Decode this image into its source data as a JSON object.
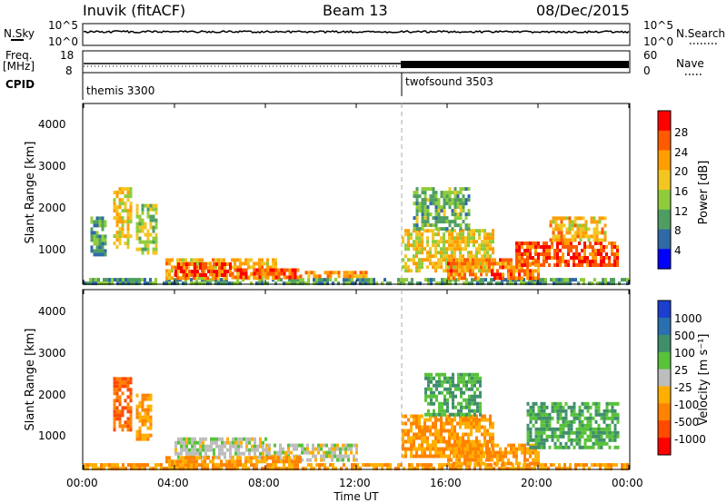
{
  "header": {
    "station": "Inuvik (fitACF)",
    "beam": "Beam 13",
    "date": "08/Dec/2015"
  },
  "noise_panel": {
    "left_label": "N.Sky",
    "right_label": "N.Search",
    "left_ticks": [
      "10^5",
      "10^0"
    ],
    "right_ticks": [
      "10^5",
      "10^0"
    ]
  },
  "freq_panel": {
    "left_label_1": "Freq.",
    "left_label_2": "[MHz]",
    "right_label": "Nave",
    "left_ticks": [
      "18",
      "8"
    ],
    "right_ticks": [
      "60",
      "0"
    ]
  },
  "cpid_panel": {
    "label": "CPID",
    "modes": [
      {
        "name": "themis 3300",
        "start_hour": 0
      },
      {
        "name": "twofsound 3503",
        "start_hour": 14
      }
    ]
  },
  "power_panel": {
    "ylabel": "Slant Range [km]",
    "yticks": [
      "4000",
      "3000",
      "2000",
      "1000"
    ],
    "colorbar_label": "Power [dB]",
    "colorbar_ticks": [
      "28",
      "24",
      "20",
      "16",
      "12",
      "8",
      "4"
    ],
    "colors": [
      "#ff0000",
      "#ff5a00",
      "#ff9d00",
      "#f3c521",
      "#8fcc3a",
      "#4f9e61",
      "#2f6aa6",
      "#0000ff"
    ]
  },
  "velocity_panel": {
    "ylabel": "Slant Range [km]",
    "yticks": [
      "4000",
      "3000",
      "2000",
      "1000"
    ],
    "colorbar_label": "Velocity [m s⁻¹]",
    "colorbar_ticks": [
      "1000",
      "500",
      "100",
      "25",
      "-25",
      "-100",
      "-500",
      "-1000"
    ],
    "colors": [
      "#1c3fd0",
      "#2a6fb0",
      "#3f8f6a",
      "#58c23a",
      "#bdbdbd",
      "#ffaf00",
      "#ff8200",
      "#ff4a00",
      "#ff0000"
    ]
  },
  "time_axis": {
    "ticks": [
      "00:00",
      "04:00",
      "08:00",
      "12:00",
      "16:00",
      "20:00",
      "00:00"
    ],
    "label": "Time UT"
  },
  "chart_data": {
    "type": "heatmap",
    "title": "Inuvik (fitACF)   Beam 13   08/Dec/2015",
    "xlabel": "Time UT",
    "ylabel": "Slant Range [km]",
    "xlim_hours": [
      0,
      24
    ],
    "ylim_km": [
      180,
      4500
    ],
    "grid": false,
    "mode_change_hour": 14,
    "power_regions": [
      {
        "t0": 0.0,
        "t1": 24.0,
        "r0": 180,
        "r1": 330,
        "db": 10
      },
      {
        "t0": 1.3,
        "t1": 2.1,
        "r0": 1100,
        "r1": 2500,
        "db": 18
      },
      {
        "t0": 2.3,
        "t1": 3.2,
        "r0": 900,
        "r1": 2100,
        "db": 14
      },
      {
        "t0": 0.3,
        "t1": 1.0,
        "r0": 900,
        "r1": 1800,
        "db": 10
      },
      {
        "t0": 3.6,
        "t1": 8.5,
        "r0": 300,
        "r1": 800,
        "db": 20
      },
      {
        "t0": 4.0,
        "t1": 6.5,
        "r0": 400,
        "r1": 700,
        "db": 27
      },
      {
        "t0": 6.5,
        "t1": 9.5,
        "r0": 330,
        "r1": 560,
        "db": 26
      },
      {
        "t0": 9.5,
        "t1": 12.5,
        "r0": 330,
        "r1": 500,
        "db": 22
      },
      {
        "t0": 14.0,
        "t1": 18.0,
        "r0": 500,
        "r1": 1500,
        "db": 18
      },
      {
        "t0": 14.5,
        "t1": 17.0,
        "r0": 1500,
        "r1": 2500,
        "db": 12
      },
      {
        "t0": 16.0,
        "t1": 20.0,
        "r0": 350,
        "r1": 800,
        "db": 24
      },
      {
        "t0": 19.0,
        "t1": 23.5,
        "r0": 600,
        "r1": 1200,
        "db": 27
      },
      {
        "t0": 20.5,
        "t1": 23.0,
        "r0": 1200,
        "r1": 1800,
        "db": 20
      }
    ],
    "velocity_regions": [
      {
        "t0": 0.0,
        "t1": 24.0,
        "r0": 180,
        "r1": 330,
        "v": -100
      },
      {
        "t0": 1.3,
        "t1": 2.1,
        "r0": 1100,
        "r1": 2400,
        "v": -500
      },
      {
        "t0": 2.3,
        "t1": 3.0,
        "r0": 900,
        "r1": 2000,
        "v": -100
      },
      {
        "t0": 4.0,
        "t1": 8.0,
        "r0": 500,
        "r1": 950,
        "v": 0
      },
      {
        "t0": 8.0,
        "t1": 12.0,
        "r0": 400,
        "r1": 800,
        "v": 0
      },
      {
        "t0": 3.6,
        "t1": 9.5,
        "r0": 330,
        "r1": 500,
        "v": -100
      },
      {
        "t0": 14.0,
        "t1": 18.0,
        "r0": 500,
        "r1": 1500,
        "v": -100
      },
      {
        "t0": 15.0,
        "t1": 17.5,
        "r0": 1500,
        "r1": 2500,
        "v": 100
      },
      {
        "t0": 16.0,
        "t1": 20.0,
        "r0": 350,
        "r1": 800,
        "v": -100
      },
      {
        "t0": 19.5,
        "t1": 23.5,
        "r0": 700,
        "r1": 1800,
        "v": 100
      }
    ]
  }
}
